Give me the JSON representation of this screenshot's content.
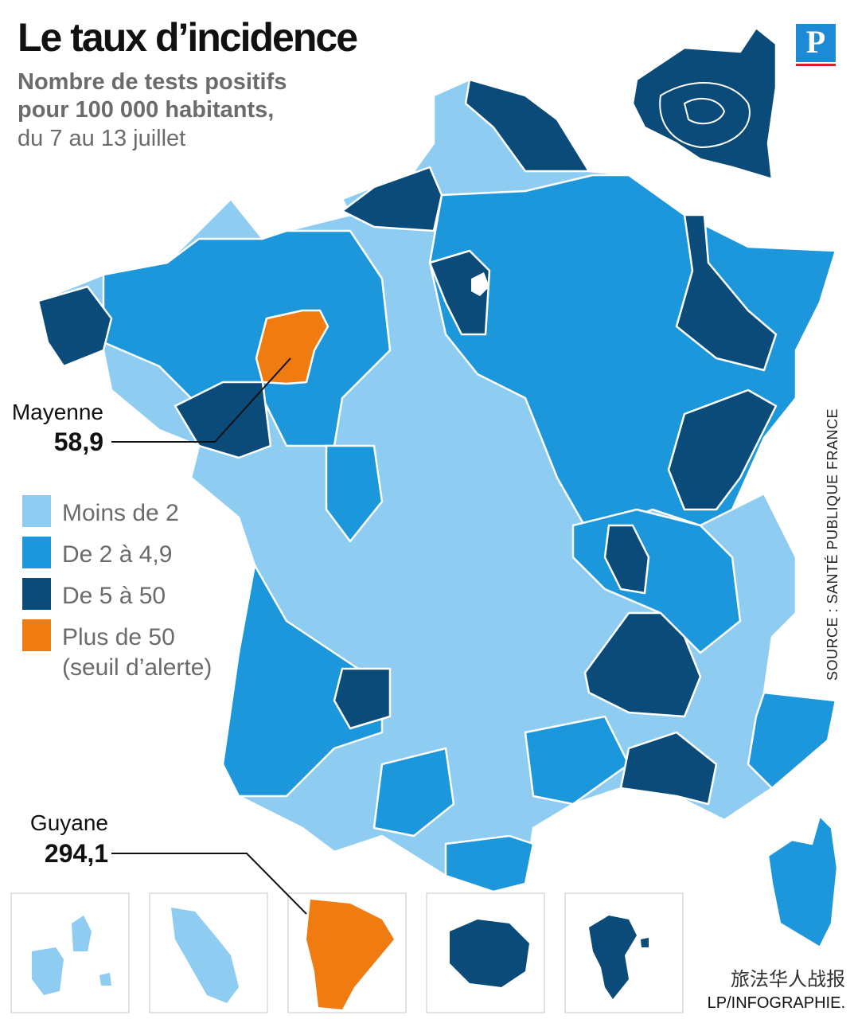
{
  "header": {
    "title": "Le taux d’incidence",
    "subtitle_lines": [
      "Nombre de tests positifs",
      "pour 100 000 habitants,"
    ],
    "dates": "du 7 au 13 juillet",
    "logo": "P"
  },
  "legend": {
    "items": [
      {
        "label": "Moins de 2",
        "color": "#8ecdf1"
      },
      {
        "label": "De 2 à 4,9",
        "color": "#1d97db"
      },
      {
        "label": "De 5 à 50",
        "color": "#0b4b7a"
      },
      {
        "label": "Plus de 50",
        "sublabel": "(seuil d’alerte)",
        "color": "#f07b10"
      }
    ]
  },
  "callouts": [
    {
      "name": "Mayenne",
      "value": "58,9"
    },
    {
      "name": "Guyane",
      "value": "294,1"
    }
  ],
  "source": "SOURCE : SANTÉ PUBLIQUE FRANCE",
  "credit": "LP/INFOGRAPHIE.",
  "watermark": "旅法华人战报"
}
